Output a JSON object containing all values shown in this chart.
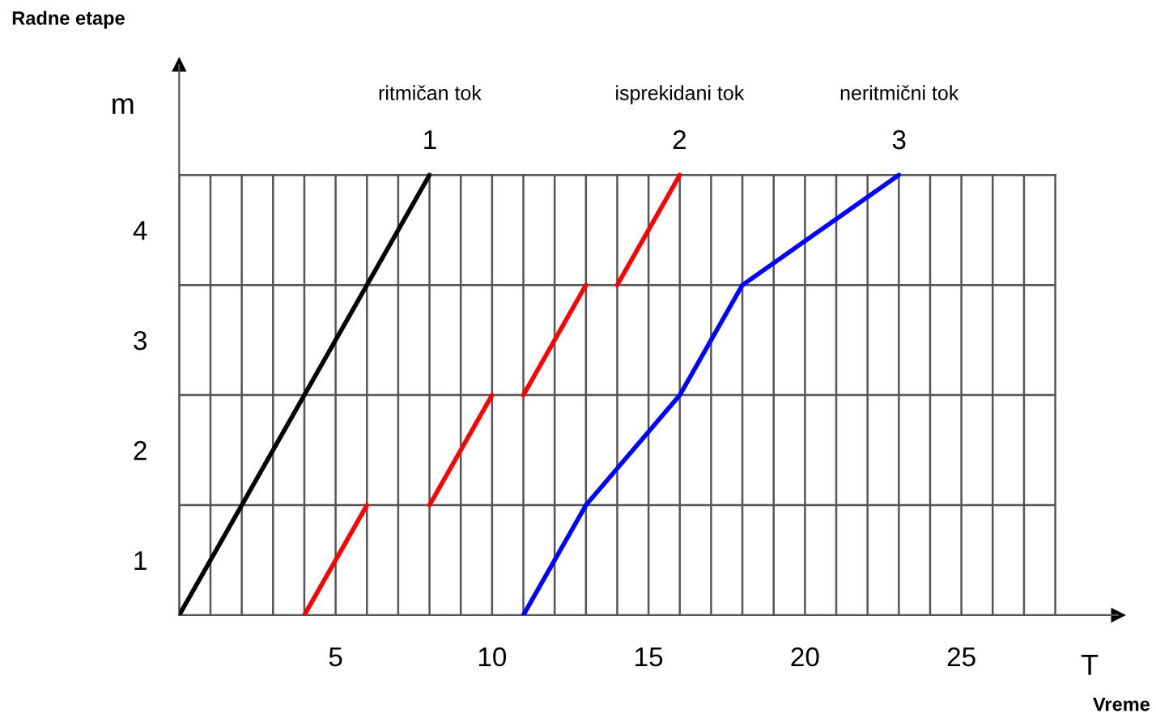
{
  "chart_data": {
    "type": "line",
    "xlabel": "T",
    "ylabel": "m",
    "xlim": [
      0,
      30
    ],
    "ylim": [
      0,
      5
    ],
    "xticks": [
      {
        "value": 0,
        "label": null
      },
      {
        "value": 1,
        "label": null
      },
      {
        "value": 2,
        "label": null
      },
      {
        "value": 3,
        "label": null
      },
      {
        "value": 4,
        "label": null
      },
      5,
      {
        "value": 6,
        "label": null
      },
      {
        "value": 7,
        "label": null
      },
      {
        "value": 8,
        "label": null
      },
      {
        "value": 9,
        "label": null
      },
      10,
      {
        "value": 11,
        "label": null
      },
      {
        "value": 12,
        "label": null
      },
      {
        "value": 13,
        "label": null
      },
      {
        "value": 14,
        "label": null
      },
      15,
      {
        "value": 16,
        "label": null
      },
      {
        "value": 17,
        "label": null
      },
      {
        "value": 18,
        "label": null
      },
      {
        "value": 19,
        "label": null
      },
      20,
      {
        "value": 21,
        "label": null
      },
      {
        "value": 22,
        "label": null
      },
      {
        "value": 23,
        "label": null
      },
      {
        "value": 24,
        "label": null
      },
      25,
      {
        "value": 26,
        "label": null
      },
      {
        "value": 27,
        "label": null
      },
      {
        "value": 28,
        "label": null
      }
    ],
    "yticks": [
      {
        "value": 0.5,
        "label": "1"
      },
      {
        "value": 1,
        "label": null
      },
      {
        "value": 1.5,
        "label": "2"
      },
      {
        "value": 2,
        "label": null
      },
      {
        "value": 2.5,
        "label": "3"
      },
      {
        "value": 3,
        "label": null
      },
      {
        "value": 3.5,
        "label": "4"
      },
      {
        "value": 4,
        "label": null
      }
    ],
    "grid": true,
    "marker": "none",
    "line_style": "solid",
    "series": [
      {
        "color": "#000000",
        "x": [
          0,
          8
        ],
        "values": [
          0,
          4
        ]
      },
      {
        "color": "#ff0000",
        "x": [
          4,
          6
        ],
        "values": [
          0,
          1
        ]
      },
      {
        "color": "#ff0000",
        "x": [
          8,
          10
        ],
        "values": [
          1,
          2
        ]
      },
      {
        "color": "#ff0000",
        "x": [
          11,
          13
        ],
        "values": [
          2,
          3
        ]
      },
      {
        "color": "#ff0000",
        "x": [
          14,
          16
        ],
        "values": [
          3,
          4
        ]
      },
      {
        "color": "#0000ff",
        "x": [
          11,
          13,
          16,
          18,
          23
        ],
        "values": [
          0,
          1,
          2,
          3,
          4
        ]
      }
    ],
    "annotations": [
      "Radne etape",
      "Vreme",
      "ritmičan tok",
      "1",
      "isprekidani tok",
      "2",
      "neritmični tok",
      "3"
    ]
  }
}
